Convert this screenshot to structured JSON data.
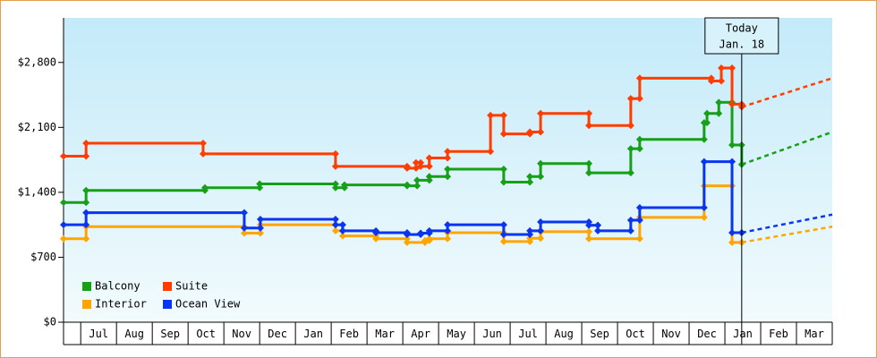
{
  "chart_data": {
    "type": "step-line",
    "today": {
      "x": 18.47,
      "label": "Today",
      "date": "Jan. 18"
    },
    "xlim": [
      -0.48,
      21
    ],
    "ylim": [
      0,
      3280
    ],
    "xticks": [
      {
        "value": 0,
        "label": "Jul"
      },
      {
        "value": 1,
        "label": "Aug"
      },
      {
        "value": 2,
        "label": "Sep"
      },
      {
        "value": 3,
        "label": "Oct"
      },
      {
        "value": 4,
        "label": "Nov"
      },
      {
        "value": 5,
        "label": "Dec"
      },
      {
        "value": 6,
        "label": "Jan"
      },
      {
        "value": 7,
        "label": "Feb"
      },
      {
        "value": 8,
        "label": "Mar"
      },
      {
        "value": 9,
        "label": "Apr"
      },
      {
        "value": 10,
        "label": "May"
      },
      {
        "value": 11,
        "label": "Jun"
      },
      {
        "value": 12,
        "label": "Jul"
      },
      {
        "value": 13,
        "label": "Aug"
      },
      {
        "value": 14,
        "label": "Sep"
      },
      {
        "value": 15,
        "label": "Oct"
      },
      {
        "value": 16,
        "label": "Nov"
      },
      {
        "value": 17,
        "label": "Dec"
      },
      {
        "value": 18,
        "label": "Jan"
      },
      {
        "value": 19,
        "label": "Feb"
      },
      {
        "value": 20,
        "label": "Mar"
      }
    ],
    "yticks": [
      {
        "value": 0,
        "label": "$0"
      },
      {
        "value": 700,
        "label": "$700"
      },
      {
        "value": 1400,
        "label": "$1,400"
      },
      {
        "value": 2100,
        "label": "$2,100"
      },
      {
        "value": 2800,
        "label": "$2,800"
      }
    ],
    "series": [
      {
        "name": "Balcony",
        "color": "#17a017",
        "x": [
          -0.48,
          0.15,
          3.47,
          5.0,
          7.12,
          7.37,
          9.12,
          9.4,
          9.74,
          10.25,
          11.82,
          12.55,
          12.85,
          14.2,
          15.37,
          15.62,
          17.42,
          17.5,
          17.83,
          18.2,
          18.47
        ],
        "values": [
          1290,
          1420,
          1450,
          1490,
          1450,
          1480,
          1470,
          1530,
          1570,
          1650,
          1510,
          1570,
          1710,
          1610,
          1870,
          1970,
          2150,
          2250,
          2370,
          1910,
          1700
        ],
        "forecast": 2050
      },
      {
        "name": "Suite",
        "color": "#ff3d00",
        "x": [
          -0.48,
          0.15,
          3.42,
          7.12,
          9.12,
          9.37,
          9.5,
          9.74,
          10.25,
          11.45,
          11.82,
          12.55,
          12.85,
          14.2,
          15.37,
          15.62,
          17.62,
          17.9,
          18.2,
          18.47
        ],
        "values": [
          1790,
          1930,
          1815,
          1680,
          1660,
          1720,
          1680,
          1770,
          1840,
          2230,
          2030,
          2050,
          2250,
          2120,
          2410,
          2630,
          2600,
          2740,
          2350,
          2320
        ],
        "forecast": 2630
      },
      {
        "name": "Interior",
        "color": "#ffa500",
        "x": [
          -0.48,
          0.15,
          4.57,
          5.02,
          7.12,
          7.32,
          8.25,
          9.12,
          9.62,
          9.74,
          10.25,
          11.82,
          12.55,
          12.85,
          14.2,
          15.62,
          17.42,
          18.2,
          18.47
        ],
        "values": [
          900,
          1030,
          960,
          1050,
          985,
          930,
          900,
          860,
          880,
          900,
          965,
          870,
          905,
          975,
          900,
          1130,
          1470,
          860,
          860
        ],
        "forecast": 1030
      },
      {
        "name": "Ocean View",
        "color": "#0a35f0",
        "x": [
          -0.48,
          0.15,
          4.57,
          5.02,
          7.12,
          7.32,
          8.25,
          9.12,
          9.5,
          9.74,
          10.25,
          11.82,
          12.55,
          12.85,
          14.2,
          14.45,
          15.37,
          15.62,
          17.42,
          18.2,
          18.47
        ],
        "values": [
          1050,
          1180,
          1015,
          1110,
          1050,
          985,
          965,
          945,
          960,
          985,
          1050,
          945,
          985,
          1080,
          1045,
          985,
          1100,
          1235,
          1730,
          965,
          965
        ],
        "forecast": 1160
      }
    ]
  }
}
